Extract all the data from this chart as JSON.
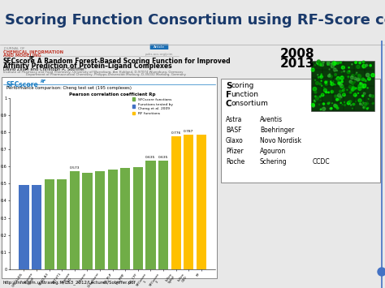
{
  "title": "Scoring Function Consortium using RF-Score code",
  "title_color": "#1a3a6b",
  "title_fontsize": 13,
  "slide_bg": "#e8e8e8",
  "year1": "2008",
  "year2": "2013",
  "year_fontsize": 11,
  "paper_title_line1": "SFCscore",
  "paper_title_sup": "RF",
  "paper_title_rest": ": A Random Forest-Based Scoring Function for Improved",
  "paper_title_line2": "Affinity Prediction of Protein–Ligand Complexes",
  "paper_authors": "David Zilian and Christoph A. Sotriffer*",
  "paper_affil1": "Institute of Pharmacy and Food Chemistry, University of Wuerzburg, Am Hubland, D-97074 Wuerzburg, Germany",
  "paper_affil2": "Department of Pharmaceutical Chemistry, Philipps-Universität Marburg, D-35032 Marburg, Germany",
  "bar_chart_subtitle": "Performance comparison: Cheng test set (195 complexes)",
  "bar_chart_ylabel": "Pearson correlation coefficient Rp",
  "bar_categories": [
    "GRL-LUD5",
    "SFscore\nSybyl",
    "SEAD-A3",
    "TST-VT1",
    "SFscore\nCSD",
    "X-Score",
    "DrugScore",
    "DS_PLP",
    "DS_PMF",
    "DS_CFF",
    "SFCscore\n1",
    "SFCscore\n2",
    "b-Sco\nSybyl",
    "b-Sco\nCSD",
    "RF"
  ],
  "bar_values": [
    0.492,
    0.493,
    0.524,
    0.524,
    0.573,
    0.565,
    0.572,
    0.58,
    0.59,
    0.597,
    0.635,
    0.635,
    0.776,
    0.787,
    0.787
  ],
  "bar_colors": [
    "#4472c4",
    "#4472c4",
    "#70ad47",
    "#70ad47",
    "#70ad47",
    "#70ad47",
    "#70ad47",
    "#70ad47",
    "#70ad47",
    "#70ad47",
    "#70ad47",
    "#70ad47",
    "#ffc000",
    "#ffc000",
    "#ffc000"
  ],
  "bar_annotations": {
    "4": "0.573",
    "10": "0.635",
    "11": "0.635",
    "12": "0.776",
    "13": "0.787"
  },
  "legend_entries": [
    {
      "label": "SFCscore functions",
      "color": "#70ad47"
    },
    {
      "label": "Functions tested by\nCheng et al. 2009",
      "color": "#4472c4"
    },
    {
      "label": "RF functions",
      "color": "#ffc000"
    }
  ],
  "consortium_members_col1": [
    "Astra",
    "BASF",
    "Glaxo",
    "Pfizer",
    "Roche"
  ],
  "consortium_members_col2": [
    "Aventis",
    "Boehringer",
    "Novo Nordisk",
    "Agouron",
    "Schering"
  ],
  "consortium_members_col3": [
    "",
    "",
    "",
    "",
    "CCDC"
  ],
  "url_text": "http://infochim.u-strasbg.fr/CS3_2012/Lectures/Sotriffer.pdf"
}
